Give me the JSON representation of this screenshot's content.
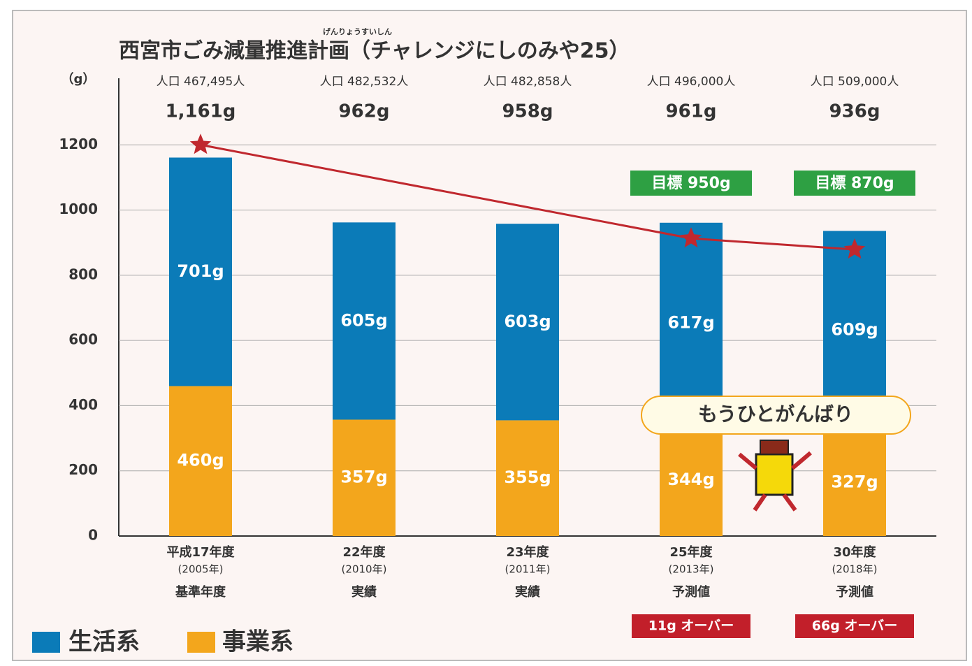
{
  "chart_data": {
    "type": "stacked_bar",
    "title": "西宮市ごみ減量推進計画（チャレンジにしのみや25）",
    "title_ruby": "げんりょうすいしん",
    "y_label": "（g）",
    "categories": [
      "平成17年度",
      "22年度",
      "23年度",
      "25年度",
      "30年度"
    ],
    "category_years": [
      "(2005年)",
      "(2010年)",
      "(2011年)",
      "(2013年)",
      "(2018年)"
    ],
    "category_notes": [
      "基準年度",
      "実績",
      "実績",
      "予測値",
      "予測値"
    ],
    "populations": [
      "人口 467,495人",
      "人口 482,532人",
      "人口 482,858人",
      "人口 496,000人",
      "人口 509,000人"
    ],
    "total_labels": [
      "1,161g",
      "962g",
      "958g",
      "961g",
      "936g"
    ],
    "series": [
      {
        "name": "生活系",
        "color": "#0b7bb8",
        "values": [
          701,
          605,
          603,
          617,
          609
        ],
        "value_labels": [
          "701g",
          "605g",
          "603g",
          "617g",
          "609g"
        ]
      },
      {
        "name": "事業系",
        "color": "#f3a61c",
        "values": [
          460,
          357,
          355,
          344,
          327
        ],
        "value_labels": [
          "460g",
          "357g",
          "355g",
          "344g",
          "327g"
        ]
      }
    ],
    "line": {
      "categories": [
        "平成17年度",
        "25年度",
        "30年度"
      ],
      "values": [
        1200,
        913,
        879
      ],
      "color": "#c0282e"
    },
    "targets": [
      {
        "category": "25年度",
        "label": "目標 950g"
      },
      {
        "category": "30年度",
        "label": "目標 870g"
      }
    ],
    "overs": [
      {
        "category": "25年度",
        "label": "11g オーバー"
      },
      {
        "category": "30年度",
        "label": "66g オーバー"
      }
    ],
    "callout": "もうひとがんばり",
    "ylim": [
      0,
      1400
    ],
    "yticks": [
      0,
      200,
      400,
      600,
      800,
      1000,
      1200
    ],
    "grid": true
  }
}
